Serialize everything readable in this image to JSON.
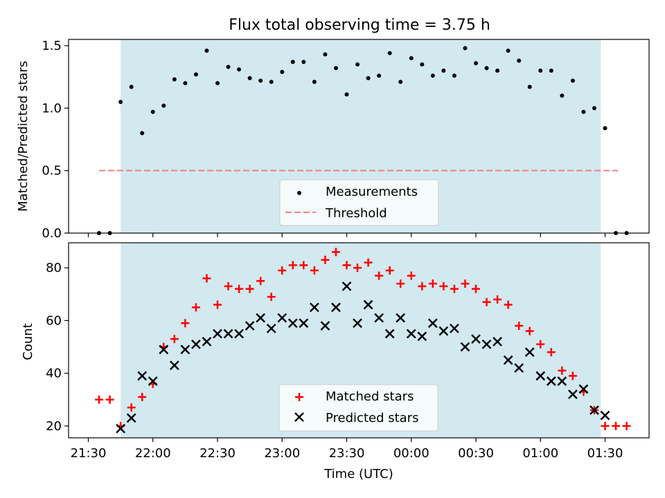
{
  "chart_data": [
    {
      "type": "scatter",
      "title": "Flux total observing time = 3.75 h",
      "xlabel": "",
      "ylabel": "Matched/Predicted stars",
      "ylim": [
        0,
        1.55
      ],
      "yticks": [
        "0.0",
        "0.5",
        "1.0",
        "1.5"
      ],
      "observing_window": {
        "start": "21:45",
        "end": "01:28",
        "color": "#d2e9f0"
      },
      "legend": {
        "placement": "lower-center",
        "entries": [
          "Measurements",
          "Threshold"
        ]
      },
      "threshold": {
        "name": "Threshold",
        "value": 0.5,
        "x_start": "21:35",
        "x_end": "01:36",
        "color": "#f08080"
      },
      "series": [
        {
          "name": "Measurements",
          "color": "#000000",
          "points": [
            [
              "21:35",
              0.0
            ],
            [
              "21:40",
              0.0
            ],
            [
              "21:45",
              1.05
            ],
            [
              "21:50",
              1.17
            ],
            [
              "21:55",
              0.8
            ],
            [
              "22:00",
              0.97
            ],
            [
              "22:05",
              1.02
            ],
            [
              "22:10",
              1.23
            ],
            [
              "22:15",
              1.2
            ],
            [
              "22:20",
              1.27
            ],
            [
              "22:25",
              1.46
            ],
            [
              "22:30",
              1.2
            ],
            [
              "22:35",
              1.33
            ],
            [
              "22:40",
              1.31
            ],
            [
              "22:45",
              1.24
            ],
            [
              "22:50",
              1.22
            ],
            [
              "22:55",
              1.21
            ],
            [
              "23:00",
              1.29
            ],
            [
              "23:05",
              1.37
            ],
            [
              "23:10",
              1.37
            ],
            [
              "23:15",
              1.21
            ],
            [
              "23:20",
              1.43
            ],
            [
              "23:25",
              1.32
            ],
            [
              "23:30",
              1.11
            ],
            [
              "23:35",
              1.35
            ],
            [
              "23:40",
              1.24
            ],
            [
              "23:45",
              1.26
            ],
            [
              "23:50",
              1.44
            ],
            [
              "23:55",
              1.21
            ],
            [
              "00:00",
              1.4
            ],
            [
              "00:05",
              1.35
            ],
            [
              "00:10",
              1.26
            ],
            [
              "00:15",
              1.3
            ],
            [
              "00:20",
              1.26
            ],
            [
              "00:25",
              1.48
            ],
            [
              "00:30",
              1.36
            ],
            [
              "00:35",
              1.32
            ],
            [
              "00:40",
              1.3
            ],
            [
              "00:45",
              1.46
            ],
            [
              "00:50",
              1.38
            ],
            [
              "00:55",
              1.17
            ],
            [
              "01:00",
              1.3
            ],
            [
              "01:05",
              1.3
            ],
            [
              "01:10",
              1.1
            ],
            [
              "01:15",
              1.22
            ],
            [
              "01:20",
              0.97
            ],
            [
              "01:25",
              1.0
            ],
            [
              "01:30",
              0.84
            ],
            [
              "01:35",
              0.0
            ],
            [
              "01:40",
              0.0
            ]
          ]
        }
      ]
    },
    {
      "type": "scatter",
      "title": "",
      "xlabel": "Time (UTC)",
      "ylabel": "Count",
      "ylim": [
        15.5,
        89.5
      ],
      "yticks": [
        "20",
        "40",
        "60",
        "80"
      ],
      "x_tick_labels": [
        "21:30",
        "22:00",
        "22:30",
        "23:00",
        "23:30",
        "00:00",
        "00:30",
        "01:00",
        "01:30"
      ],
      "observing_window": {
        "start": "21:45",
        "end": "01:28",
        "color": "#d2e9f0"
      },
      "legend": {
        "placement": "lower-center",
        "entries": [
          "Matched stars",
          "Predicted stars"
        ]
      },
      "series": [
        {
          "name": "Matched stars",
          "marker": "+",
          "color": "#ff0000",
          "points": [
            [
              "21:35",
              30
            ],
            [
              "21:40",
              30
            ],
            [
              "21:45",
              20
            ],
            [
              "21:50",
              27
            ],
            [
              "21:55",
              31
            ],
            [
              "22:00",
              36
            ],
            [
              "22:05",
              50
            ],
            [
              "22:10",
              53
            ],
            [
              "22:15",
              59
            ],
            [
              "22:20",
              65
            ],
            [
              "22:25",
              76
            ],
            [
              "22:30",
              66
            ],
            [
              "22:35",
              73
            ],
            [
              "22:40",
              72
            ],
            [
              "22:45",
              72
            ],
            [
              "22:50",
              75
            ],
            [
              "22:55",
              69
            ],
            [
              "23:00",
              79
            ],
            [
              "23:05",
              81
            ],
            [
              "23:10",
              81
            ],
            [
              "23:15",
              79
            ],
            [
              "23:20",
              83
            ],
            [
              "23:25",
              86
            ],
            [
              "23:30",
              81
            ],
            [
              "23:35",
              80
            ],
            [
              "23:40",
              82
            ],
            [
              "23:45",
              77
            ],
            [
              "23:50",
              79
            ],
            [
              "23:55",
              74
            ],
            [
              "00:00",
              77
            ],
            [
              "00:05",
              73
            ],
            [
              "00:10",
              74
            ],
            [
              "00:15",
              73
            ],
            [
              "00:20",
              72
            ],
            [
              "00:25",
              74
            ],
            [
              "00:30",
              72
            ],
            [
              "00:35",
              67
            ],
            [
              "00:40",
              68
            ],
            [
              "00:45",
              66
            ],
            [
              "00:50",
              58
            ],
            [
              "00:55",
              56
            ],
            [
              "01:00",
              51
            ],
            [
              "01:05",
              48
            ],
            [
              "01:10",
              41
            ],
            [
              "01:15",
              39
            ],
            [
              "01:20",
              33
            ],
            [
              "01:25",
              26
            ],
            [
              "01:30",
              20
            ],
            [
              "01:35",
              20
            ],
            [
              "01:40",
              20
            ]
          ]
        },
        {
          "name": "Predicted stars",
          "marker": "x",
          "color": "#000000",
          "points": [
            [
              "21:45",
              19
            ],
            [
              "21:50",
              23
            ],
            [
              "21:55",
              39
            ],
            [
              "22:00",
              37
            ],
            [
              "22:05",
              49
            ],
            [
              "22:10",
              43
            ],
            [
              "22:15",
              49
            ],
            [
              "22:20",
              51
            ],
            [
              "22:25",
              52
            ],
            [
              "22:30",
              55
            ],
            [
              "22:35",
              55
            ],
            [
              "22:40",
              55
            ],
            [
              "22:45",
              58
            ],
            [
              "22:50",
              61
            ],
            [
              "22:55",
              57
            ],
            [
              "23:00",
              61
            ],
            [
              "23:05",
              59
            ],
            [
              "23:10",
              59
            ],
            [
              "23:15",
              65
            ],
            [
              "23:20",
              58
            ],
            [
              "23:25",
              65
            ],
            [
              "23:30",
              73
            ],
            [
              "23:35",
              59
            ],
            [
              "23:40",
              66
            ],
            [
              "23:45",
              61
            ],
            [
              "23:50",
              55
            ],
            [
              "23:55",
              61
            ],
            [
              "00:00",
              55
            ],
            [
              "00:05",
              54
            ],
            [
              "00:10",
              59
            ],
            [
              "00:15",
              56
            ],
            [
              "00:20",
              57
            ],
            [
              "00:25",
              50
            ],
            [
              "00:30",
              53
            ],
            [
              "00:35",
              51
            ],
            [
              "00:40",
              52
            ],
            [
              "00:45",
              45
            ],
            [
              "00:50",
              42
            ],
            [
              "00:55",
              48
            ],
            [
              "01:00",
              39
            ],
            [
              "01:05",
              37
            ],
            [
              "01:10",
              37
            ],
            [
              "01:15",
              32
            ],
            [
              "01:20",
              34
            ],
            [
              "01:25",
              26
            ],
            [
              "01:30",
              24
            ]
          ]
        }
      ]
    }
  ]
}
